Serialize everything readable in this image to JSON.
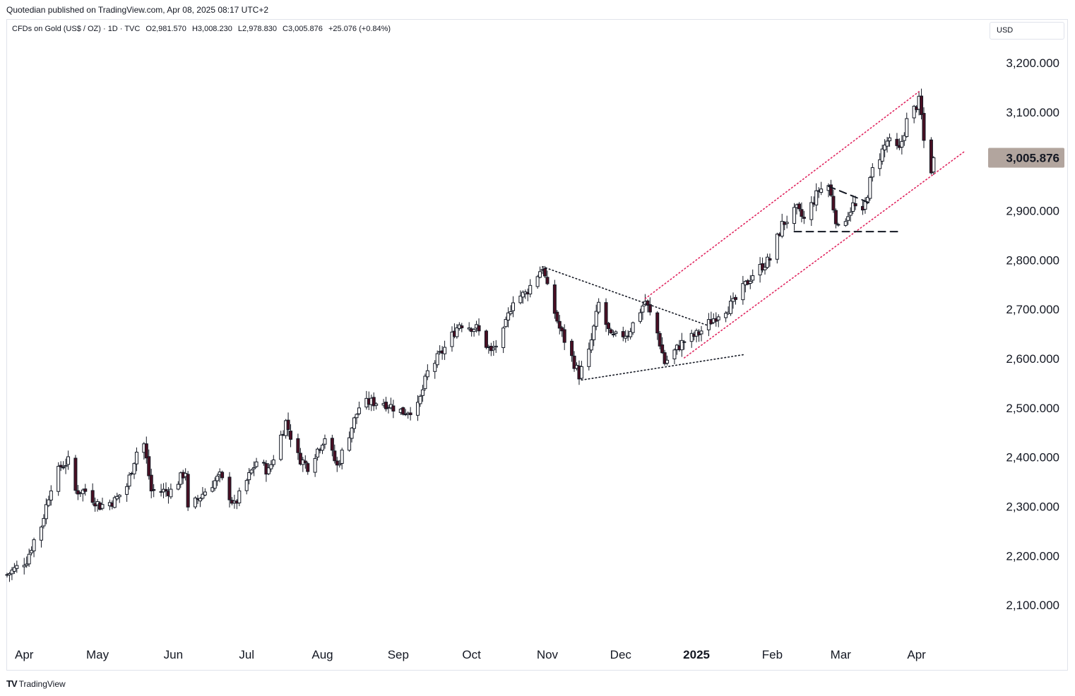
{
  "header": {
    "publish_line": "Quotedian published on TradingView.com, Apr 08, 2025 08:17 UTC+2"
  },
  "symbol": {
    "name": "CFDs on Gold (US$ / OZ) · 1D · TVC",
    "open": "O2,981.570",
    "high": "H3,008.230",
    "low": "L2,978.830",
    "close": "C3,005.876",
    "change": "+25.076 (+0.84%)"
  },
  "currency": "USD",
  "last_price_label": "3,005.876",
  "footer": {
    "logo_text": "TV",
    "brand": "TradingView"
  },
  "colors": {
    "bull_body": "#ffffff",
    "bear_body": "#4a0f23",
    "wick": "#131722",
    "channel_line": "#e0245e",
    "trend_line": "#131722",
    "price_label_bg": "#b2a59e"
  },
  "chart_data": {
    "type": "candlestick",
    "title": "CFDs on Gold (US$ / OZ)",
    "ylim": [
      2030,
      3240
    ],
    "y_ticks": [
      "3,200.000",
      "3,100.000",
      "3,000.000",
      "2,900.000",
      "2,800.000",
      "2,700.000",
      "2,600.000",
      "2,500.000",
      "2,400.000",
      "2,300.000",
      "2,200.000",
      "2,100.000"
    ],
    "y_tick_values": [
      3200,
      3100,
      3000,
      2900,
      2800,
      2700,
      2600,
      2500,
      2400,
      2300,
      2200,
      2100
    ],
    "x_ticks": [
      "Apr",
      "May",
      "Jun",
      "Jul",
      "Aug",
      "Sep",
      "Oct",
      "Nov",
      "Dec",
      "2025",
      "Feb",
      "Mar",
      "Apr"
    ],
    "x_tick_dates": [
      "2024-04-01",
      "2024-05-01",
      "2024-06-01",
      "2024-07-01",
      "2024-08-01",
      "2024-09-01",
      "2024-10-01",
      "2024-11-01",
      "2024-12-01",
      "2025-01-01",
      "2025-02-01",
      "2025-03-01",
      "2025-04-01"
    ],
    "x_range": [
      "2024-03-25",
      "2025-04-30"
    ],
    "last_value": 3005.876,
    "close_path": [
      [
        "2024-03-25",
        2160
      ],
      [
        "2024-04-02",
        2190
      ],
      [
        "2024-04-05",
        2230
      ],
      [
        "2024-04-08",
        2260
      ],
      [
        "2024-04-12",
        2340
      ],
      [
        "2024-04-16",
        2380
      ],
      [
        "2024-04-19",
        2390
      ],
      [
        "2024-04-22",
        2330
      ],
      [
        "2024-04-26",
        2330
      ],
      [
        "2024-05-02",
        2300
      ],
      [
        "2024-05-08",
        2310
      ],
      [
        "2024-05-13",
        2340
      ],
      [
        "2024-05-17",
        2410
      ],
      [
        "2024-05-20",
        2425
      ],
      [
        "2024-05-23",
        2330
      ],
      [
        "2024-05-31",
        2330
      ],
      [
        "2024-06-06",
        2370
      ],
      [
        "2024-06-07",
        2290
      ],
      [
        "2024-06-14",
        2330
      ],
      [
        "2024-06-20",
        2360
      ],
      [
        "2024-06-26",
        2300
      ],
      [
        "2024-07-05",
        2390
      ],
      [
        "2024-07-10",
        2370
      ],
      [
        "2024-07-17",
        2470
      ],
      [
        "2024-07-22",
        2400
      ],
      [
        "2024-07-26",
        2380
      ],
      [
        "2024-08-02",
        2440
      ],
      [
        "2024-08-07",
        2380
      ],
      [
        "2024-08-16",
        2500
      ],
      [
        "2024-08-20",
        2510
      ],
      [
        "2024-08-26",
        2510
      ],
      [
        "2024-09-03",
        2490
      ],
      [
        "2024-09-09",
        2500
      ],
      [
        "2024-09-13",
        2570
      ],
      [
        "2024-09-20",
        2620
      ],
      [
        "2024-09-26",
        2670
      ],
      [
        "2024-10-03",
        2660
      ],
      [
        "2024-10-09",
        2610
      ],
      [
        "2024-10-14",
        2650
      ],
      [
        "2024-10-18",
        2720
      ],
      [
        "2024-10-23",
        2730
      ],
      [
        "2024-10-30",
        2785
      ],
      [
        "2024-11-01",
        2740
      ],
      [
        "2024-11-06",
        2660
      ],
      [
        "2024-11-14",
        2565
      ],
      [
        "2024-11-18",
        2610
      ],
      [
        "2024-11-22",
        2710
      ],
      [
        "2024-11-27",
        2640
      ],
      [
        "2024-12-04",
        2650
      ],
      [
        "2024-12-11",
        2715
      ],
      [
        "2024-12-16",
        2650
      ],
      [
        "2024-12-19",
        2590
      ],
      [
        "2024-12-26",
        2630
      ],
      [
        "2025-01-02",
        2650
      ],
      [
        "2025-01-10",
        2690
      ],
      [
        "2025-01-16",
        2710
      ],
      [
        "2025-01-24",
        2770
      ],
      [
        "2025-01-31",
        2800
      ],
      [
        "2025-02-05",
        2870
      ],
      [
        "2025-02-11",
        2900
      ],
      [
        "2025-02-14",
        2880
      ],
      [
        "2025-02-20",
        2940
      ],
      [
        "2025-02-24",
        2950
      ],
      [
        "2025-02-28",
        2860
      ],
      [
        "2025-03-06",
        2910
      ],
      [
        "2025-03-10",
        2890
      ],
      [
        "2025-03-14",
        2980
      ],
      [
        "2025-03-20",
        3040
      ],
      [
        "2025-03-25",
        3020
      ],
      [
        "2025-03-28",
        3080
      ],
      [
        "2025-04-02",
        3120
      ],
      [
        "2025-04-03",
        3090
      ],
      [
        "2025-04-04",
        3040
      ],
      [
        "2025-04-07",
        2982
      ],
      [
        "2025-04-08",
        3005.876
      ]
    ],
    "annotations": [
      {
        "style": "dotted",
        "color": "channel",
        "from": [
          "2024-12-11",
          2720
        ],
        "to": [
          "2025-04-02",
          3140
        ]
      },
      {
        "style": "dotted",
        "color": "channel",
        "from": [
          "2024-12-27",
          2600
        ],
        "to": [
          "2025-04-21",
          3020
        ]
      },
      {
        "style": "dotted",
        "color": "trend",
        "from": [
          "2024-10-30",
          2785
        ],
        "to": [
          "2025-01-06",
          2665
        ]
      },
      {
        "style": "dotted",
        "color": "trend",
        "from": [
          "2024-11-15",
          2555
        ],
        "to": [
          "2025-01-21",
          2607
        ]
      },
      {
        "style": "dashed",
        "color": "trend",
        "from": [
          "2025-02-10",
          2856
        ],
        "to": [
          "2025-03-25",
          2856
        ]
      },
      {
        "style": "dashed",
        "color": "trend",
        "from": [
          "2025-02-24",
          2948
        ],
        "to": [
          "2025-03-14",
          2912
        ]
      }
    ]
  }
}
